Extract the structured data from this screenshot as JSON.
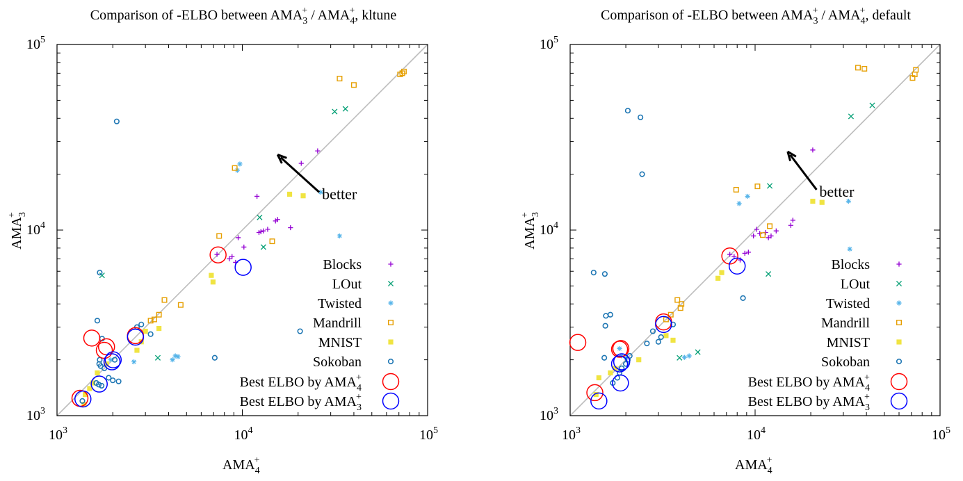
{
  "chart_data": [
    {
      "type": "scatter",
      "title": "Comparison of -ELBO between AMA3+ / AMA4+, kltune",
      "title_parts": [
        "Comparison of -ELBO between AMA",
        "3",
        "+",
        " / AMA",
        "4",
        "+",
        ", kltune"
      ],
      "xlabel_parts": [
        "AMA",
        "4",
        "+"
      ],
      "ylabel_parts": [
        "AMA",
        "3",
        "+"
      ],
      "x_scale": "log",
      "y_scale": "log",
      "xlim": [
        1000,
        100000
      ],
      "ylim": [
        1000,
        100000
      ],
      "x_ticks": [
        {
          "value": 1000,
          "base": "10",
          "exp": "3"
        },
        {
          "value": 10000,
          "base": "10",
          "exp": "4"
        },
        {
          "value": 100000,
          "base": "10",
          "exp": "5"
        }
      ],
      "y_ticks": [
        {
          "value": 1000,
          "base": "10",
          "exp": "3"
        },
        {
          "value": 10000,
          "base": "10",
          "exp": "4"
        },
        {
          "value": 100000,
          "base": "10",
          "exp": "5"
        }
      ],
      "annotation": {
        "text": "better",
        "arrow_from": [
          26000,
          16000
        ],
        "arrow_to": [
          15500,
          25500
        ]
      },
      "legend_position": "bottom-right",
      "series": [
        {
          "name": "Blocks",
          "marker": "plus",
          "color": "#9400d3",
          "points": [
            [
              7300,
              7400
            ],
            [
              8500,
              7000
            ],
            [
              8800,
              7200
            ],
            [
              9200,
              6700
            ],
            [
              9500,
              9100
            ],
            [
              10200,
              8100
            ],
            [
              12000,
              15200
            ],
            [
              12300,
              9700
            ],
            [
              12600,
              9800
            ],
            [
              13000,
              9900
            ],
            [
              13700,
              10100
            ],
            [
              15100,
              11200
            ],
            [
              15500,
              11400
            ],
            [
              18200,
              10300
            ],
            [
              20800,
              22900
            ],
            [
              25500,
              26700
            ]
          ]
        },
        {
          "name": "LOut",
          "marker": "x",
          "color": "#009e73",
          "points": [
            [
              1750,
              5700
            ],
            [
              3500,
              2050
            ],
            [
              12400,
              11700
            ],
            [
              13000,
              8100
            ],
            [
              31500,
              43500
            ],
            [
              36000,
              45000
            ]
          ]
        },
        {
          "name": "Twisted",
          "marker": "asterisk",
          "color": "#56b4e9",
          "points": [
            [
              1950,
              2000
            ],
            [
              2600,
              1950
            ],
            [
              4200,
              2000
            ],
            [
              4350,
              2100
            ],
            [
              4500,
              2080
            ],
            [
              9400,
              21000
            ],
            [
              9700,
              22700
            ],
            [
              26500,
              16000
            ],
            [
              33500,
              9300
            ]
          ]
        },
        {
          "name": "Mandrill",
          "marker": "square-open",
          "color": "#e69f00",
          "points": [
            [
              3200,
              3250
            ],
            [
              3350,
              3300
            ],
            [
              3550,
              3500
            ],
            [
              3800,
              4200
            ],
            [
              4650,
              3950
            ],
            [
              7500,
              9300
            ],
            [
              9100,
              21600
            ],
            [
              14500,
              8700
            ],
            [
              33500,
              65500
            ],
            [
              40000,
              60500
            ],
            [
              71000,
              69000
            ],
            [
              73000,
              70000
            ],
            [
              74500,
              71500
            ]
          ]
        },
        {
          "name": "MNIST",
          "marker": "square-filled",
          "color": "#f0e442",
          "points": [
            [
              1400,
              1150
            ],
            [
              1420,
              1300
            ],
            [
              1500,
              1400
            ],
            [
              1560,
              1500
            ],
            [
              1650,
              1700
            ],
            [
              1850,
              1900
            ],
            [
              2700,
              2250
            ],
            [
              2850,
              2500
            ],
            [
              3000,
              2850
            ],
            [
              3550,
              2950
            ],
            [
              6800,
              5700
            ],
            [
              6950,
              5250
            ],
            [
              18000,
              15600
            ],
            [
              21300,
              15300
            ]
          ]
        },
        {
          "name": "Sokoban",
          "marker": "circle-open",
          "color": "#1f77b4",
          "points": [
            [
              1370,
              1200
            ],
            [
              1630,
              1500
            ],
            [
              1680,
              1470
            ],
            [
              1740,
              1450
            ],
            [
              1700,
              2000
            ],
            [
              1690,
              1900
            ],
            [
              1720,
              1850
            ],
            [
              1800,
              1800
            ],
            [
              1900,
              1600
            ],
            [
              2000,
              1550
            ],
            [
              2150,
              1530
            ],
            [
              1650,
              3250
            ],
            [
              1700,
              5900
            ],
            [
              1750,
              2600
            ],
            [
              2050,
              2000
            ],
            [
              2100,
              38500
            ],
            [
              2700,
              3000
            ],
            [
              2850,
              3100
            ],
            [
              3200,
              2750
            ],
            [
              7100,
              2050
            ],
            [
              20500,
              2850
            ]
          ]
        },
        {
          "name": "Best ELBO by AMA4+",
          "name_parts": [
            "Best ELBO by AMA",
            "4",
            "+"
          ],
          "marker": "circle-large",
          "color": "#ff0000",
          "points": [
            [
              1330,
              1240
            ],
            [
              1540,
              2620
            ],
            [
              1800,
              2250
            ],
            [
              1850,
              2350
            ],
            [
              2650,
              2700
            ],
            [
              7400,
              7350
            ]
          ]
        },
        {
          "name": "Best ELBO by AMA3+",
          "name_parts": [
            "Best ELBO by AMA",
            "3",
            "+"
          ],
          "marker": "circle-large",
          "color": "#0000ff",
          "points": [
            [
              1380,
              1230
            ],
            [
              1690,
              1480
            ],
            [
              1980,
              1950
            ],
            [
              2010,
              2000
            ],
            [
              2650,
              2650
            ],
            [
              10100,
              6300
            ]
          ]
        }
      ]
    },
    {
      "type": "scatter",
      "title": "Comparison of -ELBO between AMA3+ / AMA4+, default",
      "title_parts": [
        "Comparison of -ELBO between AMA",
        "3",
        "+",
        " / AMA",
        "4",
        "+",
        ", default"
      ],
      "xlabel_parts": [
        "AMA",
        "4",
        "+"
      ],
      "ylabel_parts": [
        "AMA",
        "3",
        "+"
      ],
      "x_scale": "log",
      "y_scale": "log",
      "xlim": [
        1000,
        100000
      ],
      "ylim": [
        1000,
        100000
      ],
      "x_ticks": [
        {
          "value": 1000,
          "base": "10",
          "exp": "3"
        },
        {
          "value": 10000,
          "base": "10",
          "exp": "4"
        },
        {
          "value": 100000,
          "base": "10",
          "exp": "5"
        }
      ],
      "y_ticks": [
        {
          "value": 1000,
          "base": "10",
          "exp": "3"
        },
        {
          "value": 10000,
          "base": "10",
          "exp": "4"
        },
        {
          "value": 100000,
          "base": "10",
          "exp": "5"
        }
      ],
      "annotation": {
        "text": "better",
        "arrow_from": [
          21500,
          16500
        ],
        "arrow_to": [
          15000,
          26500
        ]
      },
      "legend_position": "bottom-right",
      "series": [
        {
          "name": "Blocks",
          "marker": "plus",
          "color": "#9400d3",
          "points": [
            [
              7300,
              7400
            ],
            [
              7700,
              7200
            ],
            [
              8300,
              6900
            ],
            [
              8800,
              7500
            ],
            [
              9200,
              7600
            ],
            [
              9800,
              9300
            ],
            [
              10200,
              10100
            ],
            [
              10600,
              9600
            ],
            [
              11400,
              9700
            ],
            [
              11800,
              9100
            ],
            [
              12200,
              9300
            ],
            [
              13000,
              9900
            ],
            [
              15600,
              10600
            ],
            [
              16000,
              11300
            ],
            [
              20500,
              27000
            ]
          ]
        },
        {
          "name": "LOut",
          "marker": "x",
          "color": "#009e73",
          "points": [
            [
              3900,
              2050
            ],
            [
              4900,
              2200
            ],
            [
              11800,
              5800
            ],
            [
              12000,
              17300
            ],
            [
              33000,
              41000
            ],
            [
              43000,
              47000
            ]
          ]
        },
        {
          "name": "Twisted",
          "marker": "asterisk",
          "color": "#56b4e9",
          "points": [
            [
              1850,
              2300
            ],
            [
              1900,
              2100
            ],
            [
              2000,
              2050
            ],
            [
              4150,
              2060
            ],
            [
              4400,
              2100
            ],
            [
              8200,
              13900
            ],
            [
              9100,
              15200
            ],
            [
              32000,
              14300
            ],
            [
              32500,
              7900
            ]
          ]
        },
        {
          "name": "Mandrill",
          "marker": "square-open",
          "color": "#e69f00",
          "points": [
            [
              3300,
              3300
            ],
            [
              3500,
              3500
            ],
            [
              3800,
              4200
            ],
            [
              3950,
              3800
            ],
            [
              4000,
              4000
            ],
            [
              7900,
              16500
            ],
            [
              10300,
              17200
            ],
            [
              11000,
              9400
            ],
            [
              12000,
              10500
            ],
            [
              36000,
              75000
            ],
            [
              39000,
              74000
            ],
            [
              71000,
              66000
            ],
            [
              73000,
              69000
            ],
            [
              74000,
              73000
            ]
          ]
        },
        {
          "name": "MNIST",
          "marker": "square-filled",
          "color": "#f0e442",
          "points": [
            [
              1380,
              1300
            ],
            [
              1430,
              1600
            ],
            [
              1650,
              1700
            ],
            [
              1750,
              1800
            ],
            [
              2350,
              2000
            ],
            [
              3300,
              2700
            ],
            [
              3600,
              2550
            ],
            [
              6300,
              5500
            ],
            [
              6600,
              5900
            ],
            [
              20500,
              14300
            ],
            [
              23000,
              14100
            ]
          ]
        },
        {
          "name": "Sokoban",
          "marker": "circle-open",
          "color": "#1f77b4",
          "points": [
            [
              1340,
              5900
            ],
            [
              1540,
              5800
            ],
            [
              1550,
              3050
            ],
            [
              1560,
              3450
            ],
            [
              1650,
              3500
            ],
            [
              1530,
              2050
            ],
            [
              1700,
              1500
            ],
            [
              1800,
              1600
            ],
            [
              1850,
              1700
            ],
            [
              1900,
              1800
            ],
            [
              2000,
              1900
            ],
            [
              2050,
              2000
            ],
            [
              2100,
              2100
            ],
            [
              2050,
              44000
            ],
            [
              2400,
              40500
            ],
            [
              2450,
              20000
            ],
            [
              2600,
              2450
            ],
            [
              2800,
              2850
            ],
            [
              3000,
              2500
            ],
            [
              3100,
              2650
            ],
            [
              3600,
              3100
            ],
            [
              8600,
              4300
            ]
          ]
        },
        {
          "name": "Best ELBO by AMA4+",
          "name_parts": [
            "Best ELBO by AMA",
            "4",
            "+"
          ],
          "marker": "circle-large",
          "color": "#ff0000",
          "points": [
            [
              1100,
              2480
            ],
            [
              1360,
              1330
            ],
            [
              1850,
              2280
            ],
            [
              1880,
              2300
            ],
            [
              3200,
              3200
            ],
            [
              7300,
              7250
            ]
          ]
        },
        {
          "name": "Best ELBO by AMA3+",
          "name_parts": [
            "Best ELBO by AMA",
            "3",
            "+"
          ],
          "marker": "circle-large",
          "color": "#0000ff",
          "points": [
            [
              1430,
              1200
            ],
            [
              1870,
              1500
            ],
            [
              1850,
              1900
            ],
            [
              1900,
              1950
            ],
            [
              3200,
              3100
            ],
            [
              8000,
              6400
            ]
          ]
        }
      ]
    }
  ]
}
